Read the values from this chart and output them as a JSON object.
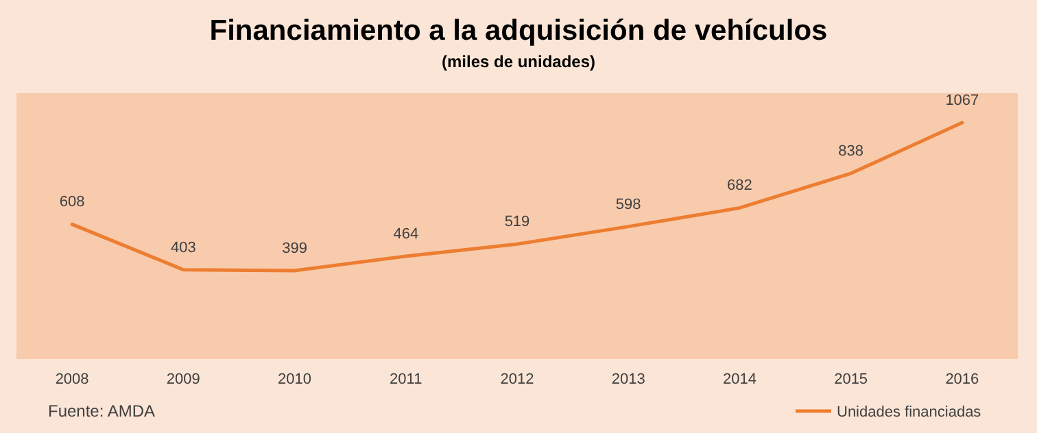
{
  "chart_data": {
    "type": "line",
    "title": "Financiamiento a la adquisición de vehículos",
    "subtitle": "(miles de unidades)",
    "categories": [
      "2008",
      "2009",
      "2010",
      "2011",
      "2012",
      "2013",
      "2014",
      "2015",
      "2016"
    ],
    "series": [
      {
        "name": "Unidades financiadas",
        "color": "#ed7d31",
        "values": [
          608,
          403,
          399,
          464,
          519,
          598,
          682,
          838,
          1067
        ]
      }
    ],
    "ylim": [
      0,
      1200
    ],
    "tick_labels": "x",
    "data_labels": true,
    "legend": "bottom right",
    "annotations": [
      "Fuente: AMDA"
    ]
  }
}
